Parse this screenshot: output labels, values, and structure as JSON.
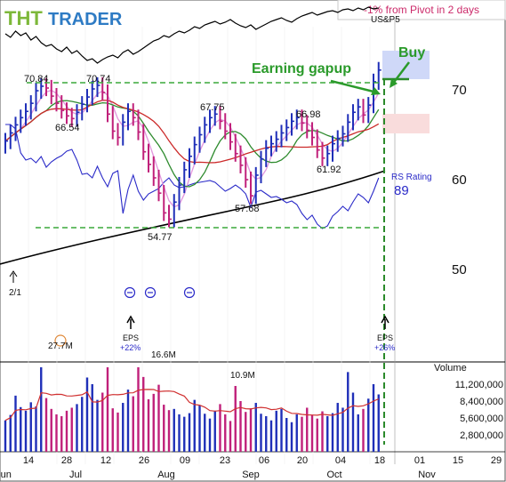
{
  "brand": {
    "logo_text": "TRADER",
    "logo_letters": "THT"
  },
  "banner": "-1% from Pivot in 2 days",
  "index_label": "US&P5",
  "annotations": {
    "earning_gapup": "Earning gapup",
    "buy": "Buy",
    "rs_rating_label": "RS Rating",
    "rs_rating_value": "89",
    "eps_1": "EPS",
    "eps_1_change": "+22%",
    "eps_2": "EPS",
    "eps_2_change": "+26%",
    "split": "2/1"
  },
  "price_labels": [
    "70.84",
    "70.74",
    "66.54",
    "67.75",
    "66.98",
    "57.68",
    "61.92",
    "54.77"
  ],
  "volume_labels": [
    "27.7M",
    "16.6M",
    "10.9M"
  ],
  "colors": {
    "up_bar": "#1f2fb8",
    "down_bar": "#c0207a",
    "ma_green": "#2e8b2e",
    "ma_red": "#cc2a2a",
    "ma_pink": "#e39adf",
    "rs_line": "#2a2ac8",
    "long_ma": "#000000",
    "pivot_dashed": "#3aa83a",
    "buy_zone": "#cfd8f8",
    "avoid_zone": "#f9dcdc",
    "banner_text": "#cc2a6a"
  },
  "chart_data": {
    "type": "candlestick-volume",
    "title": "",
    "price_axis": {
      "ticks": [
        50,
        60,
        70
      ],
      "range": [
        44,
        79
      ]
    },
    "volume_axis": {
      "label": "Volume",
      "ticks": [
        "11,200,000",
        "8,400,000",
        "5,600,000",
        "2,800,000"
      ],
      "tick_values": [
        11200000,
        8400000,
        5600000,
        2800000
      ],
      "range": [
        0,
        14000000
      ]
    },
    "x_axis": {
      "day_ticks": [
        "14",
        "28",
        "12",
        "26",
        "09",
        "23",
        "06",
        "20",
        "04",
        "18",
        "01",
        "15",
        "29"
      ],
      "month_labels": [
        "Jun",
        "Jul",
        "Aug",
        "Sep",
        "Oct",
        "Nov"
      ]
    },
    "pivot": 71.2,
    "support_level": 54.77,
    "prior_high_level": 70.84,
    "rs_rating": 89,
    "ohlc_closes": [
      64.2,
      65.1,
      66.0,
      66.8,
      67.5,
      68.4,
      69.8,
      70.3,
      70.1,
      69.2,
      68.4,
      67.6,
      67.0,
      66.7,
      67.4,
      68.3,
      69.1,
      70.0,
      70.4,
      69.6,
      67.2,
      65.3,
      64.6,
      66.3,
      67.5,
      66.8,
      65.2,
      63.0,
      61.6,
      60.1,
      58.4,
      56.2,
      55.5,
      57.4,
      59.3,
      61.0,
      62.5,
      63.8,
      64.9,
      66.0,
      66.8,
      67.2,
      66.4,
      65.3,
      64.1,
      62.8,
      61.5,
      59.9,
      58.1,
      60.4,
      62.2,
      63.4,
      63.9,
      64.4,
      65.1,
      65.7,
      66.4,
      66.8,
      66.2,
      65.4,
      64.6,
      63.2,
      62.3,
      62.8,
      63.9,
      64.5,
      65.0,
      66.3,
      67.4,
      68.0,
      67.1,
      68.2,
      70.8,
      72.1
    ],
    "volume_series": [
      5.2,
      6.1,
      9.3,
      7.4,
      6.8,
      8.2,
      7.5,
      27.7,
      8.9,
      7.1,
      6.2,
      5.9,
      6.8,
      7.3,
      7.9,
      9.1,
      12.3,
      11.2,
      8.6,
      9.8,
      14.5,
      7.2,
      6.5,
      8.1,
      10.3,
      9.2,
      16.6,
      12.4,
      8.7,
      9.6,
      11.1,
      7.8,
      6.9,
      7.1,
      6.2,
      5.8,
      6.4,
      8.6,
      7.7,
      6.3,
      5.5,
      6.8,
      7.9,
      6.2,
      5.1,
      10.9,
      8.4,
      6.6,
      7.2,
      8.1,
      6.3,
      5.9,
      5.2,
      6.8,
      7.1,
      5.6,
      4.9,
      6.2,
      5.8,
      7.3,
      6.1,
      5.5,
      6.7,
      5.9,
      6.4,
      8.1,
      7.3,
      13.2,
      9.8,
      6.2,
      7.1,
      8.8,
      11.2,
      9.5
    ]
  }
}
